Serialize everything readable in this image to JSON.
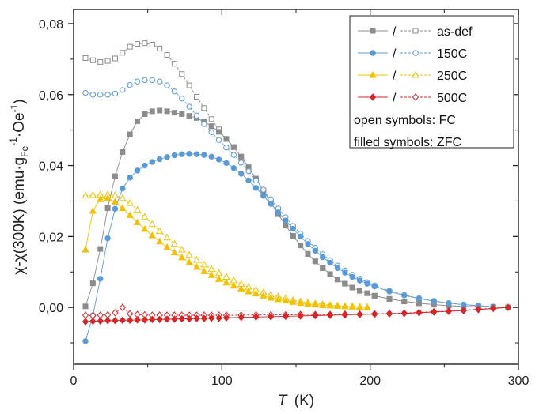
{
  "chart_data": {
    "type": "scatter",
    "xlabel": "T",
    "xlabel_unit": "(K)",
    "ylabel": "χ-χ(300K) (emu·g",
    "ylabel_sub": "Fe",
    "ylabel_sup": "-1",
    "ylabel_rest": "·Oe",
    "ylabel_sup2": "-1",
    "ylabel_close": ")",
    "xlim": [
      0,
      300
    ],
    "ylim": [
      -0.016,
      0.084
    ],
    "xticks": [
      0,
      100,
      200,
      300
    ],
    "xtick_labels": [
      "0",
      "100",
      "200",
      "300"
    ],
    "yticks": [
      0.0,
      0.02,
      0.04,
      0.06,
      0.08
    ],
    "ytick_labels": [
      "0,00",
      "0,02",
      "0,04",
      "0,06",
      "0,08"
    ],
    "legend_position": "top-right",
    "legend_notes": [
      "open symbols: FC",
      "filled symbols: ZFC"
    ],
    "series": [
      {
        "name": "as-def",
        "color": "#8c8c8c",
        "marker": "square",
        "zfc": {
          "x": [
            8,
            13,
            18,
            23,
            28,
            33,
            38,
            43,
            48,
            53,
            58,
            63,
            68,
            73,
            78,
            83,
            88,
            93,
            98,
            103,
            108,
            113,
            118,
            123,
            128,
            133,
            138,
            143,
            148,
            153,
            158,
            163,
            168,
            173,
            178,
            183,
            188,
            193,
            198,
            203,
            213,
            223,
            233,
            243,
            253,
            263,
            273,
            283,
            293
          ],
          "y": [
            0.0003,
            0.0068,
            0.0165,
            0.028,
            0.037,
            0.0438,
            0.0488,
            0.0525,
            0.0545,
            0.0553,
            0.0555,
            0.0553,
            0.0549,
            0.0545,
            0.054,
            0.0534,
            0.0524,
            0.0511,
            0.0495,
            0.0475,
            0.0452,
            0.0425,
            0.0395,
            0.0363,
            0.033,
            0.0296,
            0.0263,
            0.0231,
            0.0202,
            0.0175,
            0.0151,
            0.013,
            0.0111,
            0.0094,
            0.0079,
            0.0067,
            0.0056,
            0.0047,
            0.004,
            0.0033,
            0.0024,
            0.0017,
            0.0012,
            0.0008,
            0.0005,
            0.0003,
            0.0002,
            0.0001,
            0.0
          ]
        },
        "fc": {
          "x": [
            8,
            13,
            18,
            23,
            28,
            33,
            38,
            43,
            48,
            53,
            58,
            63,
            68,
            73,
            78,
            83,
            88,
            93,
            98,
            103,
            108,
            113,
            118,
            123,
            128,
            133,
            138,
            143,
            148,
            153,
            158,
            163,
            168,
            173,
            178,
            183,
            188,
            193,
            198,
            203,
            213,
            223,
            233,
            243,
            253,
            263,
            273,
            283,
            293
          ],
          "y": [
            0.0703,
            0.0697,
            0.0692,
            0.0695,
            0.0702,
            0.0718,
            0.0735,
            0.0743,
            0.0745,
            0.0741,
            0.073,
            0.0712,
            0.0687,
            0.0658,
            0.0626,
            0.0594,
            0.0562,
            0.0531,
            0.0502,
            0.0475,
            0.0452,
            0.0425,
            0.0395,
            0.0363,
            0.033,
            0.0296,
            0.0263,
            0.0231,
            0.0202,
            0.0175,
            0.0151,
            0.013,
            0.0111,
            0.0094,
            0.0079,
            0.0067,
            0.0056,
            0.0047,
            0.004,
            0.0033,
            0.0024,
            0.0017,
            0.0012,
            0.0008,
            0.0005,
            0.0003,
            0.0002,
            0.0001,
            0.0
          ]
        }
      },
      {
        "name": "150C",
        "color": "#5b9bd5",
        "marker": "circle",
        "zfc": {
          "x": [
            8,
            13,
            18,
            23,
            28,
            33,
            38,
            43,
            48,
            53,
            58,
            63,
            68,
            73,
            78,
            83,
            88,
            93,
            98,
            103,
            108,
            113,
            118,
            123,
            128,
            133,
            138,
            143,
            148,
            153,
            158,
            163,
            168,
            173,
            178,
            183,
            188,
            193,
            198,
            203,
            213,
            223,
            233,
            243,
            253,
            263,
            273,
            283,
            293
          ],
          "y": [
            -0.0095,
            -0.0022,
            0.0081,
            0.0195,
            0.0278,
            0.0335,
            0.0366,
            0.0386,
            0.04,
            0.041,
            0.0418,
            0.0424,
            0.0429,
            0.0432,
            0.0433,
            0.0432,
            0.043,
            0.0425,
            0.0417,
            0.0407,
            0.0393,
            0.0377,
            0.0358,
            0.0337,
            0.0315,
            0.0292,
            0.0268,
            0.0245,
            0.0222,
            0.02,
            0.0179,
            0.016,
            0.0142,
            0.0126,
            0.0111,
            0.0098,
            0.0086,
            0.0076,
            0.0067,
            0.0059,
            0.0045,
            0.0034,
            0.0025,
            0.0018,
            0.0012,
            0.0008,
            0.0005,
            0.0002,
            0.0
          ]
        },
        "fc": {
          "x": [
            8,
            13,
            18,
            23,
            28,
            33,
            38,
            43,
            48,
            53,
            58,
            63,
            68,
            73,
            78,
            83,
            88,
            93,
            98,
            103,
            108,
            113,
            118,
            123,
            128,
            133,
            138,
            143,
            148,
            153,
            158,
            163,
            168,
            173,
            178,
            183,
            188,
            193,
            198,
            203,
            213,
            223,
            233,
            243,
            253,
            263,
            273,
            283,
            293
          ],
          "y": [
            0.0605,
            0.06,
            0.06,
            0.06,
            0.0603,
            0.0613,
            0.0627,
            0.0637,
            0.0641,
            0.0641,
            0.0637,
            0.0626,
            0.0609,
            0.0589,
            0.0566,
            0.0541,
            0.0517,
            0.0494,
            0.0472,
            0.0451,
            0.043,
            0.0408,
            0.0384,
            0.0358,
            0.0332,
            0.0305,
            0.0279,
            0.0254,
            0.023,
            0.0208,
            0.0187,
            0.0168,
            0.015,
            0.0133,
            0.0118,
            0.0104,
            0.0092,
            0.0081,
            0.0071,
            0.0062,
            0.0047,
            0.0035,
            0.0026,
            0.0018,
            0.0012,
            0.0008,
            0.0005,
            0.0002,
            0.0
          ]
        }
      },
      {
        "name": "250C",
        "color": "#f2c200",
        "marker": "triangle",
        "zfc": {
          "x": [
            8,
            13,
            18,
            23,
            28,
            33,
            38,
            43,
            48,
            53,
            58,
            63,
            68,
            73,
            78,
            83,
            88,
            93,
            98,
            103,
            108,
            113,
            118,
            123,
            128,
            133,
            138,
            143,
            148,
            153,
            158,
            163,
            168,
            173,
            178,
            183,
            188,
            193,
            198
          ],
          "y": [
            0.0163,
            0.0272,
            0.0305,
            0.0308,
            0.0298,
            0.028,
            0.026,
            0.024,
            0.0221,
            0.0203,
            0.0186,
            0.017,
            0.0155,
            0.0141,
            0.0127,
            0.0114,
            0.0102,
            0.0091,
            0.008,
            0.007,
            0.0061,
            0.0053,
            0.0045,
            0.0039,
            0.0033,
            0.0027,
            0.0023,
            0.0019,
            0.0015,
            0.0012,
            0.001,
            0.0008,
            0.0006,
            0.0005,
            0.0004,
            0.0003,
            0.0002,
            0.0001,
            0.0
          ]
        },
        "fc": {
          "x": [
            8,
            13,
            18,
            23,
            28,
            33,
            38,
            43,
            48,
            53,
            58,
            63,
            68,
            73,
            78,
            83,
            88,
            93,
            98,
            103,
            108,
            113,
            118,
            123,
            128,
            133,
            138,
            143,
            148,
            153,
            158,
            163,
            168,
            173,
            178,
            183,
            188,
            193,
            198
          ],
          "y": [
            0.0315,
            0.0317,
            0.0318,
            0.0318,
            0.0316,
            0.0308,
            0.0294,
            0.0275,
            0.0255,
            0.0235,
            0.0215,
            0.0197,
            0.0179,
            0.0163,
            0.0148,
            0.0134,
            0.0121,
            0.0108,
            0.0097,
            0.0086,
            0.0076,
            0.0066,
            0.0058,
            0.005,
            0.0043,
            0.0036,
            0.0031,
            0.0026,
            0.0021,
            0.0017,
            0.0014,
            0.0011,
            0.0009,
            0.0007,
            0.0005,
            0.0004,
            0.0003,
            0.0002,
            0.0001
          ]
        }
      },
      {
        "name": "500C",
        "color": "#d62728",
        "marker": "diamond",
        "zfc": {
          "x": [
            8,
            13,
            18,
            23,
            28,
            33,
            38,
            43,
            48,
            53,
            58,
            63,
            68,
            73,
            78,
            83,
            88,
            93,
            98,
            103,
            113,
            123,
            133,
            143,
            153,
            163,
            173,
            183,
            193,
            203,
            213,
            223,
            233,
            243,
            253,
            263,
            273,
            283,
            293
          ],
          "y": [
            -0.004,
            -0.0039,
            -0.0038,
            -0.0037,
            -0.0037,
            -0.0036,
            -0.0036,
            -0.0035,
            -0.0035,
            -0.0034,
            -0.0034,
            -0.0033,
            -0.0033,
            -0.0032,
            -0.0032,
            -0.0031,
            -0.0031,
            -0.003,
            -0.003,
            -0.0029,
            -0.0028,
            -0.0027,
            -0.0026,
            -0.0025,
            -0.0024,
            -0.0023,
            -0.0022,
            -0.0021,
            -0.002,
            -0.0019,
            -0.0018,
            -0.0017,
            -0.0015,
            -0.0013,
            -0.0011,
            -0.0009,
            -0.0006,
            -0.0003,
            0.0
          ]
        },
        "fc": {
          "x": [
            8,
            13,
            18,
            23,
            28,
            33,
            38,
            43,
            48,
            53,
            58,
            63,
            68,
            73,
            78,
            83,
            88,
            93,
            98,
            103,
            113,
            123,
            133,
            143,
            153,
            163,
            173,
            183,
            193,
            203,
            213,
            223,
            233,
            243,
            253,
            263,
            273,
            283,
            293
          ],
          "y": [
            -0.0022,
            -0.0023,
            -0.0022,
            -0.0021,
            -0.0015,
            0.0,
            -0.0018,
            -0.002,
            -0.0021,
            -0.0022,
            -0.0022,
            -0.0022,
            -0.0022,
            -0.0022,
            -0.0022,
            -0.0022,
            -0.0022,
            -0.0022,
            -0.0022,
            -0.0022,
            -0.0022,
            -0.0021,
            -0.0021,
            -0.0021,
            -0.002,
            -0.002,
            -0.002,
            -0.0019,
            -0.0019,
            -0.0018,
            -0.0017,
            -0.0016,
            -0.0014,
            -0.0012,
            -0.001,
            -0.0008,
            -0.0005,
            -0.0002,
            0.0
          ]
        }
      }
    ]
  }
}
